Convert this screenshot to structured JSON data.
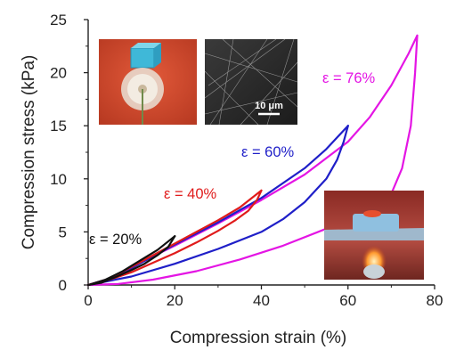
{
  "chart_data": {
    "type": "line",
    "xlabel": "Compression strain (%)",
    "ylabel": "Compression stress (kPa)",
    "xlim": [
      0,
      80
    ],
    "ylim": [
      0,
      25
    ],
    "xticks": [
      0,
      20,
      40,
      60,
      80
    ],
    "yticks": [
      0,
      5,
      10,
      15,
      20,
      25
    ],
    "grid": false,
    "legend": "none",
    "series": [
      {
        "name": "ε = 76%",
        "color": "#e415e4",
        "loading": [
          [
            0,
            0
          ],
          [
            5,
            0.6
          ],
          [
            10,
            1.6
          ],
          [
            15,
            2.7
          ],
          [
            20,
            3.7
          ],
          [
            30,
            5.8
          ],
          [
            40,
            8.0
          ],
          [
            50,
            10.4
          ],
          [
            60,
            13.5
          ],
          [
            65,
            15.8
          ],
          [
            70,
            18.8
          ],
          [
            74,
            21.8
          ],
          [
            76,
            23.5
          ]
        ],
        "unloading": [
          [
            76,
            23.5
          ],
          [
            75.5,
            20
          ],
          [
            74.5,
            15
          ],
          [
            72.5,
            11
          ],
          [
            70,
            8.6
          ],
          [
            65,
            7.1
          ],
          [
            55,
            5.3
          ],
          [
            45,
            3.7
          ],
          [
            35,
            2.4
          ],
          [
            25,
            1.3
          ],
          [
            15,
            0.5
          ],
          [
            7,
            0.1
          ],
          [
            0,
            0
          ]
        ]
      },
      {
        "name": "ε = 60%",
        "color": "#1f1fc8",
        "loading": [
          [
            0,
            0
          ],
          [
            5,
            0.6
          ],
          [
            10,
            1.6
          ],
          [
            15,
            2.7
          ],
          [
            20,
            3.8
          ],
          [
            30,
            5.9
          ],
          [
            40,
            8.2
          ],
          [
            50,
            11.0
          ],
          [
            55,
            12.8
          ],
          [
            60,
            15.0
          ]
        ],
        "unloading": [
          [
            60,
            15.0
          ],
          [
            59,
            13.5
          ],
          [
            57.5,
            11.8
          ],
          [
            55,
            10.0
          ],
          [
            50,
            7.8
          ],
          [
            45,
            6.2
          ],
          [
            40,
            5.0
          ],
          [
            30,
            3.4
          ],
          [
            20,
            2.0
          ],
          [
            10,
            0.8
          ],
          [
            0,
            0
          ]
        ]
      },
      {
        "name": "ε = 40%",
        "color": "#e01b1b",
        "loading": [
          [
            0,
            0
          ],
          [
            5,
            0.6
          ],
          [
            10,
            1.7
          ],
          [
            15,
            2.8
          ],
          [
            20,
            3.9
          ],
          [
            25,
            5.0
          ],
          [
            30,
            6.1
          ],
          [
            35,
            7.3
          ],
          [
            40,
            8.9
          ]
        ],
        "unloading": [
          [
            40,
            8.9
          ],
          [
            39,
            8.0
          ],
          [
            37,
            7.0
          ],
          [
            34,
            6.1
          ],
          [
            30,
            5.1
          ],
          [
            25,
            4.0
          ],
          [
            20,
            3.0
          ],
          [
            15,
            2.1
          ],
          [
            10,
            1.2
          ],
          [
            5,
            0.5
          ],
          [
            0,
            0
          ]
        ]
      },
      {
        "name": "ε = 20%",
        "color": "#111111",
        "loading": [
          [
            0,
            0
          ],
          [
            4,
            0.5
          ],
          [
            8,
            1.3
          ],
          [
            12,
            2.3
          ],
          [
            16,
            3.3
          ],
          [
            20,
            4.6
          ]
        ],
        "unloading": [
          [
            20,
            4.6
          ],
          [
            18.5,
            3.6
          ],
          [
            16,
            2.8
          ],
          [
            13,
            2.0
          ],
          [
            10,
            1.4
          ],
          [
            6,
            0.7
          ],
          [
            3,
            0.2
          ],
          [
            0,
            0
          ]
        ]
      }
    ],
    "annotations": [
      {
        "text": "ε = 20%",
        "color": "#111111"
      },
      {
        "text": "ε = 40%",
        "color": "#e01b1b"
      },
      {
        "text": "ε = 60%",
        "color": "#1f1fc8"
      },
      {
        "text": "ε = 76%",
        "color": "#e415e4"
      }
    ],
    "scale_bar_label": "10 μm"
  }
}
